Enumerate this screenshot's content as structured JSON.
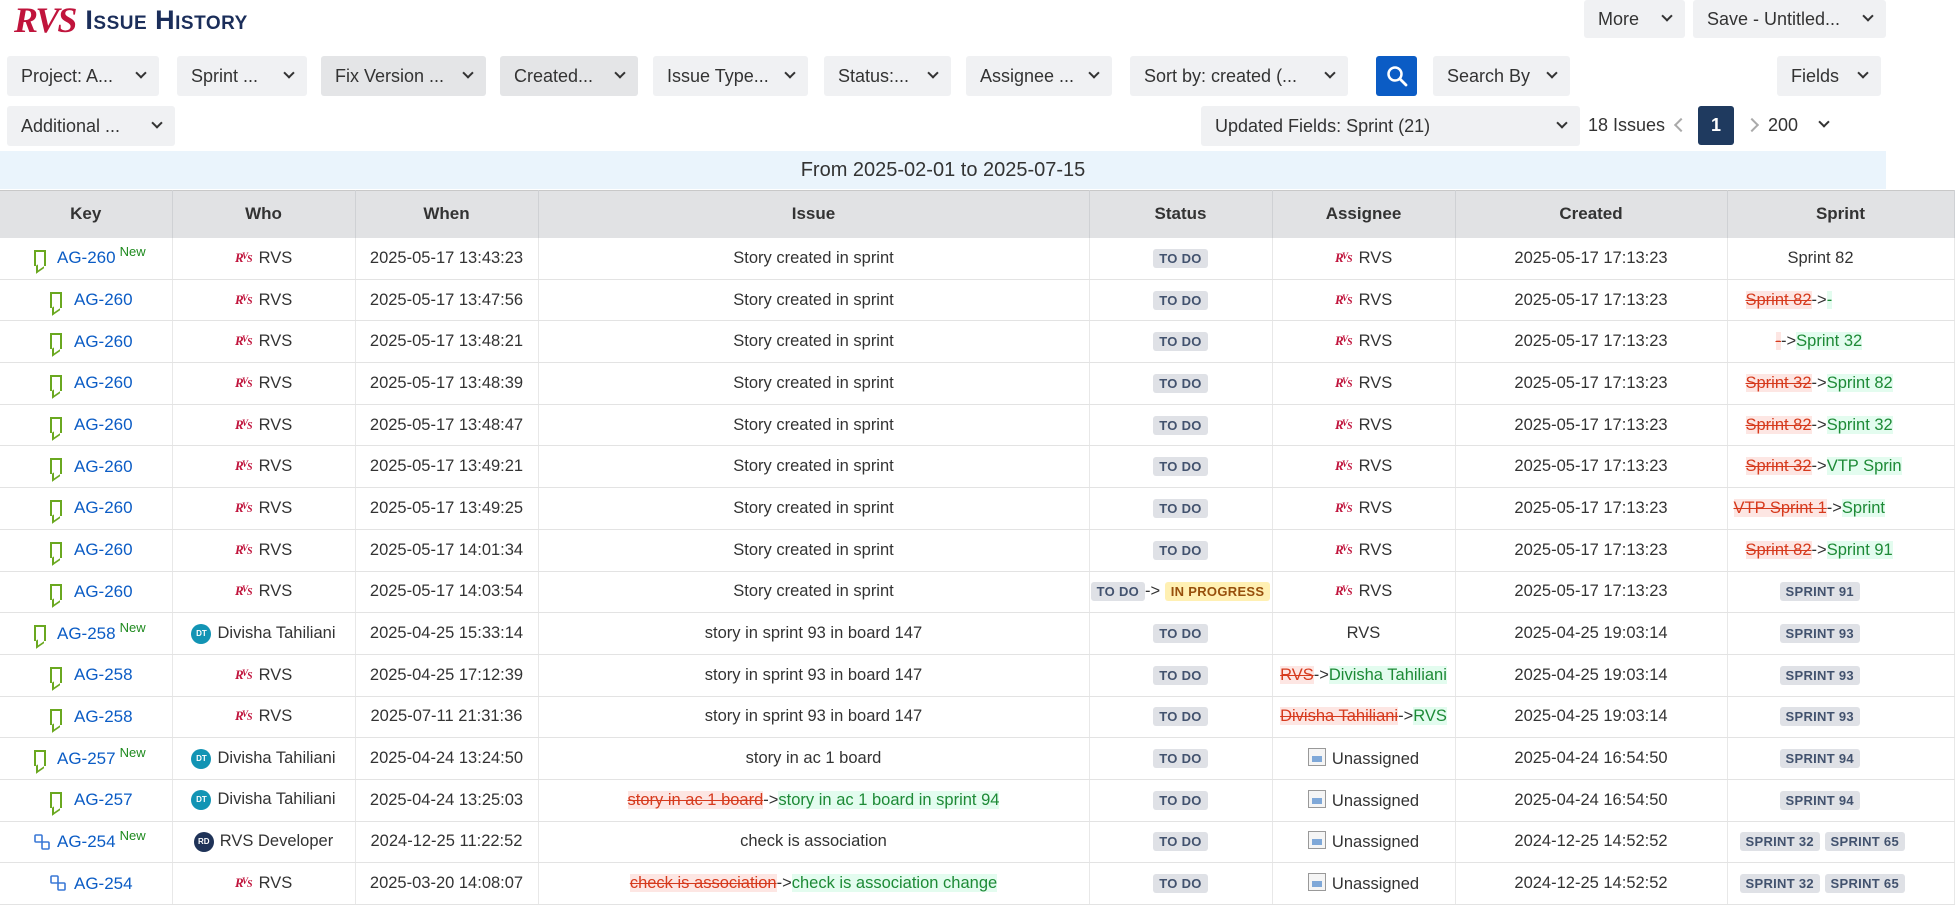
{
  "header": {
    "logo_text": "RVS",
    "title": "Issue History",
    "more_label": "More",
    "save_label": "Save - Untitled..."
  },
  "filters": {
    "project": "Project: A...",
    "sprint": "Sprint ...",
    "fix_version": "Fix Version ...",
    "created": "Created...",
    "issue_type": "Issue Type...",
    "status": "Status:...",
    "assignee": "Assignee ...",
    "sort": "Sort by: created (...",
    "search_by": "Search By",
    "fields": "Fields",
    "additional": "Additional ...",
    "updated_fields": "Updated Fields: Sprint (21)"
  },
  "pagination": {
    "issue_count": "18 Issues",
    "current_page": "1",
    "page_size": "200"
  },
  "date_range": "From 2025-02-01 to 2025-07-15",
  "columns": [
    "Key",
    "Who",
    "When",
    "Issue",
    "Status",
    "Assignee",
    "Created",
    "Sprint"
  ],
  "rows": [
    {
      "key": "AG-260",
      "new": "New",
      "icon": "story",
      "who": "RVS",
      "who_type": "rvs",
      "when": "2025-05-17 13:43:23",
      "issue": "Story created in sprint",
      "status": "TO DO",
      "assignee": "RVS",
      "assignee_type": "rvs",
      "created": "2025-05-17 17:13:23",
      "sprint": "Sprint 82",
      "sprint_type": "plain"
    },
    {
      "key": "AG-260",
      "new": "",
      "icon": "story",
      "who": "RVS",
      "who_type": "rvs",
      "when": "2025-05-17 13:47:56",
      "issue": "Story created in sprint",
      "status": "TO DO",
      "assignee": "RVS",
      "assignee_type": "rvs",
      "created": "2025-05-17 17:13:23",
      "sprint_old": "Sprint 82",
      "sprint_new": "-",
      "sprint_type": "change"
    },
    {
      "key": "AG-260",
      "new": "",
      "icon": "story",
      "who": "RVS",
      "who_type": "rvs",
      "when": "2025-05-17 13:48:21",
      "issue": "Story created in sprint",
      "status": "TO DO",
      "assignee": "RVS",
      "assignee_type": "rvs",
      "created": "2025-05-17 17:13:23",
      "sprint_old": "-",
      "sprint_new": "Sprint 32",
      "sprint_type": "change"
    },
    {
      "key": "AG-260",
      "new": "",
      "icon": "story",
      "who": "RVS",
      "who_type": "rvs",
      "when": "2025-05-17 13:48:39",
      "issue": "Story created in sprint",
      "status": "TO DO",
      "assignee": "RVS",
      "assignee_type": "rvs",
      "created": "2025-05-17 17:13:23",
      "sprint_old": "Sprint 32",
      "sprint_new": "Sprint 82",
      "sprint_type": "change"
    },
    {
      "key": "AG-260",
      "new": "",
      "icon": "story",
      "who": "RVS",
      "who_type": "rvs",
      "when": "2025-05-17 13:48:47",
      "issue": "Story created in sprint",
      "status": "TO DO",
      "assignee": "RVS",
      "assignee_type": "rvs",
      "created": "2025-05-17 17:13:23",
      "sprint_old": "Sprint 82",
      "sprint_new": "Sprint 32",
      "sprint_type": "change"
    },
    {
      "key": "AG-260",
      "new": "",
      "icon": "story",
      "who": "RVS",
      "who_type": "rvs",
      "when": "2025-05-17 13:49:21",
      "issue": "Story created in sprint",
      "status": "TO DO",
      "assignee": "RVS",
      "assignee_type": "rvs",
      "created": "2025-05-17 17:13:23",
      "sprint_old": "Sprint 32",
      "sprint_new": "VTP Sprin",
      "sprint_type": "change"
    },
    {
      "key": "AG-260",
      "new": "",
      "icon": "story",
      "who": "RVS",
      "who_type": "rvs",
      "when": "2025-05-17 13:49:25",
      "issue": "Story created in sprint",
      "status": "TO DO",
      "assignee": "RVS",
      "assignee_type": "rvs",
      "created": "2025-05-17 17:13:23",
      "sprint_old": "VTP Sprint 1",
      "sprint_new": "Sprint",
      "sprint_type": "change"
    },
    {
      "key": "AG-260",
      "new": "",
      "icon": "story",
      "who": "RVS",
      "who_type": "rvs",
      "when": "2025-05-17 14:01:34",
      "issue": "Story created in sprint",
      "status": "TO DO",
      "assignee": "RVS",
      "assignee_type": "rvs",
      "created": "2025-05-17 17:13:23",
      "sprint_old": "Sprint 82",
      "sprint_new": "Sprint 91",
      "sprint_type": "change"
    },
    {
      "key": "AG-260",
      "new": "",
      "icon": "story",
      "who": "RVS",
      "who_type": "rvs",
      "when": "2025-05-17 14:03:54",
      "issue": "Story created in sprint",
      "status": "TO DO",
      "status_new": "IN PROGRESS",
      "assignee": "RVS",
      "assignee_type": "rvs",
      "created": "2025-05-17 17:13:23",
      "sprint": "SPRINT 91",
      "sprint_type": "badge"
    },
    {
      "key": "AG-258",
      "new": "New",
      "icon": "story",
      "who": "Divisha Tahiliani",
      "who_type": "dt",
      "who_initials": "DT",
      "when": "2025-04-25 15:33:14",
      "issue": "story in sprint 93 in board 147",
      "status": "TO DO",
      "assignee": "RVS",
      "assignee_type": "plain",
      "created": "2025-04-25 19:03:14",
      "sprint": "SPRINT 93",
      "sprint_type": "badge"
    },
    {
      "key": "AG-258",
      "new": "",
      "icon": "story",
      "who": "RVS",
      "who_type": "rvs",
      "when": "2025-04-25 17:12:39",
      "issue": "story in sprint 93 in board 147",
      "status": "TO DO",
      "assignee_old": "RVS",
      "assignee_new": "Divisha Tahiliani",
      "assignee_type": "change",
      "created": "2025-04-25 19:03:14",
      "sprint": "SPRINT 93",
      "sprint_type": "badge"
    },
    {
      "key": "AG-258",
      "new": "",
      "icon": "story",
      "who": "RVS",
      "who_type": "rvs",
      "when": "2025-07-11 21:31:36",
      "issue": "story in sprint 93 in board 147",
      "status": "TO DO",
      "assignee_old": "Divisha Tahiliani",
      "assignee_new": "RVS",
      "assignee_type": "change",
      "created": "2025-04-25 19:03:14",
      "sprint": "SPRINT 93",
      "sprint_type": "badge"
    },
    {
      "key": "AG-257",
      "new": "New",
      "icon": "story",
      "who": "Divisha Tahiliani",
      "who_type": "dt",
      "who_initials": "DT",
      "when": "2025-04-24 13:24:50",
      "issue": "story in ac 1 board",
      "status": "TO DO",
      "assignee": "Unassigned",
      "assignee_type": "img",
      "created": "2025-04-24 16:54:50",
      "sprint": "SPRINT 94",
      "sprint_type": "badge"
    },
    {
      "key": "AG-257",
      "new": "",
      "icon": "story",
      "who": "Divisha Tahiliani",
      "who_type": "dt",
      "who_initials": "DT",
      "when": "2025-04-24 13:25:03",
      "issue_old": "story in ac 1 board",
      "issue_new": "story in ac 1 board in sprint 94",
      "status": "TO DO",
      "assignee": "Unassigned",
      "assignee_type": "img",
      "created": "2025-04-24 16:54:50",
      "sprint": "SPRINT 94",
      "sprint_type": "badge"
    },
    {
      "key": "AG-254",
      "new": "New",
      "icon": "subtask",
      "who": "RVS Developer",
      "who_type": "rd",
      "who_initials": "RD",
      "when": "2024-12-25 11:22:52",
      "issue": "check is association",
      "status": "TO DO",
      "assignee": "Unassigned",
      "assignee_type": "img",
      "created": "2024-12-25 14:52:52",
      "sprint": "SPRINT 32",
      "sprint2": "SPRINT 65",
      "sprint_type": "badge2"
    },
    {
      "key": "AG-254",
      "new": "",
      "icon": "subtask",
      "who": "RVS",
      "who_type": "rvs",
      "when": "2025-03-20 14:08:07",
      "issue_old": "check is association",
      "issue_new": "check is association change",
      "status": "TO DO",
      "assignee": "Unassigned",
      "assignee_type": "img",
      "created": "2024-12-25 14:52:52",
      "sprint": "SPRINT 32",
      "sprint2": "SPRINT 65",
      "sprint_type": "badge2"
    }
  ],
  "colors": {
    "accent": "#0b5cc5",
    "logo": "#c0143c",
    "old_value": "#d63a1d",
    "new_value": "#1d8a36",
    "story_icon": "#6aa820"
  }
}
